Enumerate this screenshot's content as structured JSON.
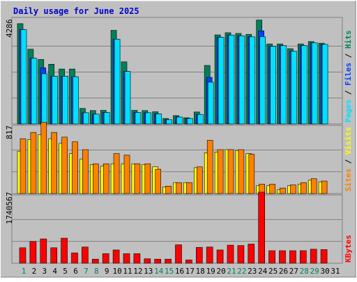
{
  "chart_data": [
    {
      "type": "bar",
      "panel": "top",
      "title": "Daily usage for June 2025",
      "ytick": "4286",
      "ymax": 4286,
      "side_labels": [
        "Pages",
        "Files",
        "Hits"
      ],
      "side_label_separator": " / ",
      "categories": [
        "1",
        "2",
        "3",
        "4",
        "5",
        "6",
        "7",
        "8",
        "9",
        "10",
        "11",
        "12",
        "13",
        "14",
        "15",
        "16",
        "17",
        "18",
        "19",
        "20",
        "21",
        "22",
        "23",
        "24",
        "25",
        "26",
        "27",
        "28",
        "29",
        "30",
        "31"
      ],
      "series": [
        {
          "name": "Hits",
          "values": [
            4200,
            3130,
            2700,
            2500,
            2300,
            2300,
            650,
            560,
            570,
            3920,
            2600,
            570,
            560,
            510,
            230,
            350,
            260,
            500,
            2450,
            3730,
            3820,
            3790,
            3750,
            4350,
            3350,
            3350,
            3150,
            3350,
            3450,
            3380,
            0
          ]
        },
        {
          "name": "Files",
          "values": [
            3950,
            2750,
            2350,
            2000,
            2000,
            1980,
            470,
            410,
            480,
            3550,
            2200,
            480,
            470,
            420,
            180,
            290,
            230,
            400,
            1950,
            3630,
            3720,
            3690,
            3650,
            3900,
            3250,
            3280,
            3050,
            3280,
            3400,
            3330,
            0
          ]
        },
        {
          "name": "Pages",
          "values": [
            3950,
            2750,
            2100,
            2000,
            2000,
            1980,
            470,
            410,
            480,
            3550,
            2200,
            480,
            470,
            420,
            180,
            290,
            230,
            400,
            1750,
            3630,
            3720,
            3690,
            3650,
            3650,
            3250,
            3280,
            3050,
            3280,
            3400,
            3330,
            0
          ]
        }
      ]
    },
    {
      "type": "bar",
      "panel": "middle",
      "ytick": "817",
      "ymax": 817,
      "side_labels": [
        "Sites",
        "Visits"
      ],
      "side_label_separator": " / ",
      "categories": [
        "1",
        "2",
        "3",
        "4",
        "5",
        "6",
        "7",
        "8",
        "9",
        "10",
        "11",
        "12",
        "13",
        "14",
        "15",
        "16",
        "17",
        "18",
        "19",
        "20",
        "21",
        "22",
        "23",
        "24",
        "25",
        "26",
        "27",
        "28",
        "29",
        "30",
        "31"
      ],
      "series": [
        {
          "name": "Visits",
          "values": [
            540,
            690,
            750,
            700,
            640,
            510,
            440,
            370,
            350,
            380,
            380,
            380,
            370,
            340,
            85,
            140,
            140,
            330,
            520,
            530,
            560,
            550,
            510,
            100,
            100,
            50,
            100,
            120,
            170,
            150,
            0
          ]
        },
        {
          "name": "Sites",
          "values": [
            700,
            780,
            907,
            780,
            720,
            660,
            560,
            380,
            380,
            510,
            490,
            380,
            380,
            310,
            95,
            140,
            140,
            340,
            680,
            560,
            560,
            560,
            500,
            120,
            120,
            70,
            110,
            140,
            190,
            160,
            0
          ]
        }
      ]
    },
    {
      "type": "bar",
      "panel": "bottom",
      "ytick": "1740567",
      "ymax": 1740567,
      "side_labels": [
        "KBytes"
      ],
      "side_label_separator": "",
      "categories": [
        "1",
        "2",
        "3",
        "4",
        "5",
        "6",
        "7",
        "8",
        "9",
        "10",
        "11",
        "12",
        "13",
        "14",
        "15",
        "16",
        "17",
        "18",
        "19",
        "20",
        "21",
        "22",
        "23",
        "24",
        "25",
        "26",
        "27",
        "28",
        "29",
        "30",
        "31"
      ],
      "series": [
        {
          "name": "KBytes",
          "values": [
            420000,
            590000,
            660000,
            420000,
            680000,
            280000,
            440000,
            110000,
            260000,
            360000,
            260000,
            260000,
            120000,
            110000,
            110000,
            500000,
            90000,
            430000,
            440000,
            360000,
            490000,
            480000,
            520000,
            1930000,
            340000,
            340000,
            340000,
            340000,
            380000,
            370000,
            0
          ]
        }
      ]
    }
  ],
  "x_axis": {
    "labels": [
      "1",
      "2",
      "3",
      "4",
      "5",
      "6",
      "7",
      "8",
      "9",
      "10",
      "11",
      "12",
      "13",
      "14",
      "15",
      "16",
      "17",
      "18",
      "19",
      "20",
      "21",
      "22",
      "23",
      "24",
      "25",
      "26",
      "27",
      "28",
      "29",
      "30",
      "31"
    ],
    "weekend_days": [
      1,
      7,
      8,
      14,
      15,
      21,
      22,
      28,
      29
    ]
  },
  "colors": {
    "background": "#c0c0c0",
    "grid": "#808080",
    "title": "#0000cc",
    "hits": "#00805c",
    "files": "#0040ff",
    "pages": "#00e0ff",
    "visits": "#ffff00",
    "sites": "#ff8000",
    "kbytes": "#ff0000",
    "weekday_label": "#000000",
    "weekend_label": "#00805c"
  }
}
